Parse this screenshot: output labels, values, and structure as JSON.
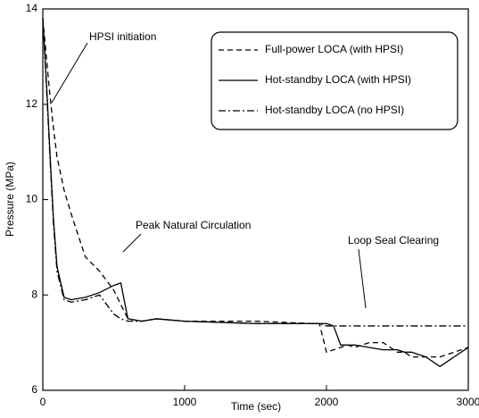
{
  "chart_data": {
    "type": "line",
    "xlabel": "Time (sec)",
    "ylabel": "Pressure (MPa)",
    "x": [
      0,
      25,
      50,
      75,
      100,
      150,
      200,
      300,
      400,
      500,
      550,
      600,
      700,
      800,
      1000,
      1500,
      1900,
      1950,
      2000,
      2050,
      2100,
      2150,
      2200,
      2300,
      2400,
      2500,
      2550,
      2600,
      2700,
      2800,
      2900,
      3000
    ],
    "series": [
      {
        "name": "Full-power LOCA (with HPSI)",
        "color": "#000000",
        "dash": "dashed",
        "values": [
          13.8,
          13.0,
          12.2,
          11.5,
          10.9,
          10.2,
          9.7,
          8.8,
          8.5,
          8.1,
          7.8,
          7.5,
          7.45,
          7.5,
          7.45,
          7.45,
          7.4,
          7.4,
          6.8,
          6.85,
          6.9,
          6.95,
          6.9,
          7.0,
          7.0,
          6.8,
          6.8,
          6.7,
          6.7,
          6.7,
          6.8,
          6.9
        ]
      },
      {
        "name": "Hot-standby LOCA (with HPSI)",
        "color": "#000000",
        "dash": "solid",
        "values": [
          13.8,
          12.5,
          11.0,
          9.6,
          8.6,
          7.95,
          7.9,
          7.95,
          8.05,
          8.2,
          8.25,
          7.5,
          7.45,
          7.5,
          7.45,
          7.4,
          7.4,
          7.4,
          7.4,
          7.35,
          6.95,
          6.95,
          6.95,
          6.9,
          6.85,
          6.85,
          6.8,
          6.8,
          6.7,
          6.5,
          6.7,
          6.9
        ]
      },
      {
        "name": "Hot-standby LOCA (no HPSI)",
        "color": "#000000",
        "dash": "dashdot",
        "values": [
          13.8,
          12.4,
          10.9,
          9.5,
          8.5,
          7.9,
          7.85,
          7.9,
          8.0,
          7.6,
          7.5,
          7.45,
          7.45,
          7.5,
          7.45,
          7.4,
          7.4,
          7.4,
          7.35,
          7.35,
          7.35,
          7.35,
          7.35,
          7.35,
          7.35,
          7.35,
          7.35,
          7.35,
          7.35,
          7.35,
          7.35,
          7.35
        ]
      }
    ],
    "annotations": [
      "HPSI initiation",
      "Peak Natural Circulation",
      "Loop Seal Clearing"
    ],
    "xlim": [
      0,
      3000
    ],
    "xticks": [
      0,
      1000,
      2000,
      3000
    ],
    "ylim": [
      6,
      14
    ],
    "yticks": [
      6,
      8,
      10,
      12,
      14
    ],
    "legend": "upper right",
    "grid": false
  }
}
